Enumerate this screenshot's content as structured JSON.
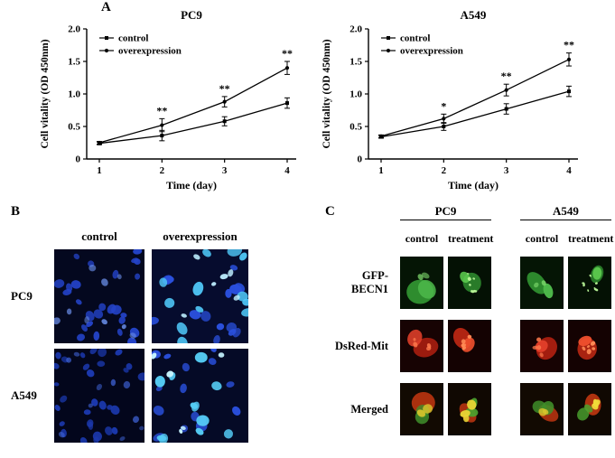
{
  "figure_labels": {
    "a": "A",
    "b": "B",
    "c": "C"
  },
  "chart_data": [
    {
      "type": "line",
      "title": "PC9",
      "xlabel": "Time (day)",
      "ylabel": "Cell vitality (OD 450nm)",
      "x": [
        1,
        2,
        3,
        4
      ],
      "xtick_labels": [
        "1",
        "2",
        "3",
        "4"
      ],
      "ylim": [
        0,
        2.0
      ],
      "yticks": [
        0,
        0.5,
        1.0,
        1.5,
        2.0
      ],
      "ytick_labels": [
        "0",
        "0.5",
        "1.0",
        "1.5",
        "2.0"
      ],
      "grid": false,
      "legend_position": "top-left",
      "series": [
        {
          "name": "control",
          "marker": "square",
          "values": [
            0.24,
            0.36,
            0.58,
            0.86
          ],
          "errors": [
            0.02,
            0.08,
            0.07,
            0.08
          ]
        },
        {
          "name": "overexpression",
          "marker": "circle",
          "values": [
            0.25,
            0.52,
            0.88,
            1.4
          ],
          "errors": [
            0.02,
            0.1,
            0.08,
            0.1
          ]
        }
      ],
      "significance": [
        {
          "x": 2,
          "label": "**"
        },
        {
          "x": 3,
          "label": "**"
        },
        {
          "x": 4,
          "label": "**"
        }
      ]
    },
    {
      "type": "line",
      "title": "A549",
      "xlabel": "Time (day)",
      "ylabel": "Cell vitality (OD 450nm)",
      "x": [
        1,
        2,
        3,
        4
      ],
      "xtick_labels": [
        "1",
        "2",
        "3",
        "4"
      ],
      "ylim": [
        0,
        2.0
      ],
      "yticks": [
        0,
        0.5,
        1.0,
        1.5,
        2.0
      ],
      "ytick_labels": [
        "0",
        "0.5",
        "1.0",
        "1.5",
        "2.0"
      ],
      "grid": false,
      "legend_position": "top-left",
      "series": [
        {
          "name": "control",
          "marker": "square",
          "values": [
            0.34,
            0.5,
            0.77,
            1.04
          ],
          "errors": [
            0.02,
            0.06,
            0.08,
            0.08
          ]
        },
        {
          "name": "overexpression",
          "marker": "circle",
          "values": [
            0.35,
            0.62,
            1.06,
            1.53
          ],
          "errors": [
            0.02,
            0.07,
            0.09,
            0.1
          ]
        }
      ],
      "significance": [
        {
          "x": 2,
          "label": "*"
        },
        {
          "x": 3,
          "label": "**"
        },
        {
          "x": 4,
          "label": "**"
        }
      ]
    }
  ],
  "panel_b": {
    "col_headers": [
      "control",
      "overexpression"
    ],
    "row_labels": [
      "PC9",
      "A549"
    ],
    "stain_color": "#2a50dd"
  },
  "panel_c": {
    "group_headers": [
      "PC9",
      "A549"
    ],
    "col_headers": [
      "control",
      "treatment",
      "control",
      "treatment"
    ],
    "row_labels": [
      "GFP-BECN1",
      "DsRed-Mit",
      "Merged"
    ],
    "row_colors": {
      "gfp": "#3ab83a",
      "dsred": "#d23418",
      "merged_overlap": "#e8d435"
    }
  }
}
